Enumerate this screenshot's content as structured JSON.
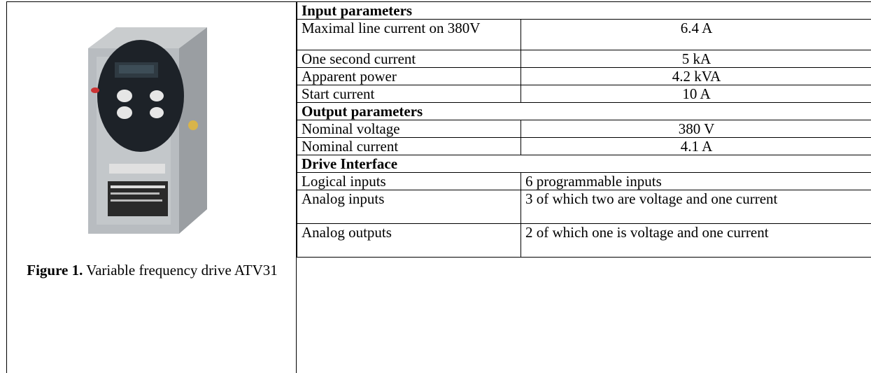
{
  "figure": {
    "caption_label": "Figure 1.",
    "caption_text": "Variable frequency drive ATV31"
  },
  "sections": [
    {
      "title": "Input parameters",
      "rows": [
        [
          "Maximal line current on 380V",
          "6.4 A"
        ],
        [
          "One second current",
          "5 kA"
        ],
        [
          "Apparent power",
          "4.2 kVA"
        ],
        [
          "Start current",
          "10 A"
        ]
      ]
    },
    {
      "title": "Output parameters",
      "rows": [
        [
          "Nominal voltage",
          "380 V"
        ],
        [
          "Nominal current",
          "4.1 A"
        ]
      ]
    },
    {
      "title": "Drive Interface",
      "rows": [
        [
          "Logical inputs",
          "6 programmable inputs"
        ],
        [
          "Analog inputs",
          "3 of which two are voltage and one current"
        ],
        [
          "Analog outputs",
          "2 of which one is voltage and one current"
        ]
      ]
    }
  ]
}
